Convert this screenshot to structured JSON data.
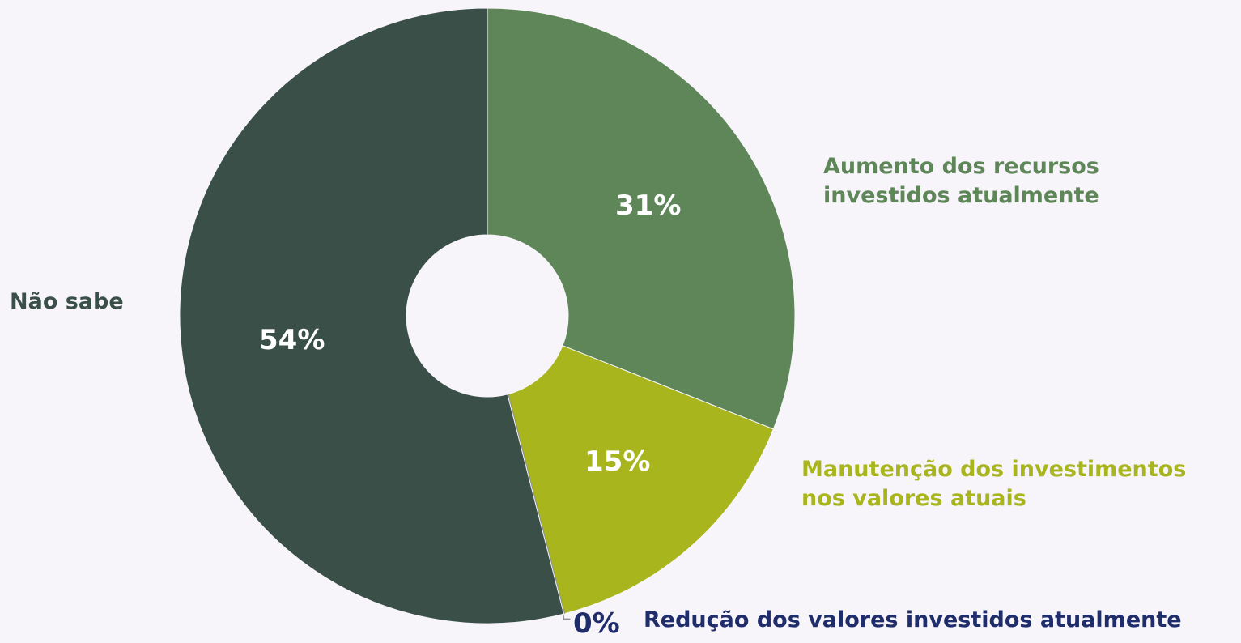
{
  "chart_data": {
    "type": "donut",
    "categories": [
      "Aumento dos recursos\ninvestidos atualmente",
      "Manutenção dos investimentos\nnos valores atuais",
      "Redução dos valores investidos atualmente",
      "Não sabe"
    ],
    "values": [
      31,
      15,
      0,
      54
    ],
    "value_labels": [
      "31%",
      "15%",
      "0%",
      "54%"
    ],
    "colors": [
      "#5e8659",
      "#a8b51c",
      "#8a8f94",
      "#3a4f48"
    ],
    "label_colors": [
      "#5e8659",
      "#a8b51c",
      "#1f2d6b",
      "#3a4f48"
    ]
  }
}
